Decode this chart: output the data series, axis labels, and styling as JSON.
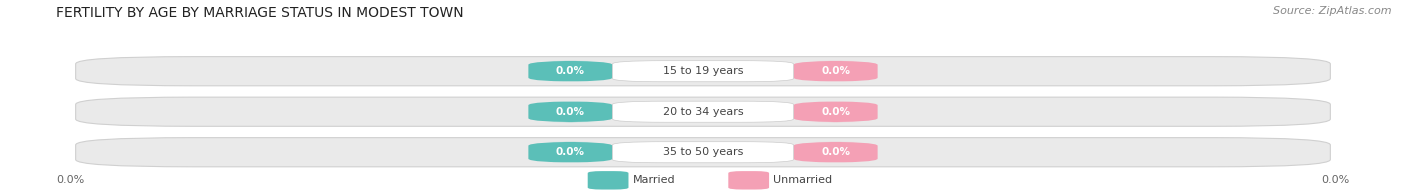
{
  "title": "FERTILITY BY AGE BY MARRIAGE STATUS IN MODEST TOWN",
  "source": "Source: ZipAtlas.com",
  "categories": [
    "15 to 19 years",
    "20 to 34 years",
    "35 to 50 years"
  ],
  "married_values": [
    0.0,
    0.0,
    0.0
  ],
  "unmarried_values": [
    0.0,
    0.0,
    0.0
  ],
  "married_color": "#5BBFB8",
  "unmarried_color": "#F4A0B5",
  "row_bg_color": "#EAEAEA",
  "fig_bg_color": "#FFFFFF",
  "axis_value_left": "0.0%",
  "axis_value_right": "0.0%",
  "title_fontsize": 10,
  "source_fontsize": 8,
  "label_fontsize": 8,
  "value_fontsize": 7.5,
  "figsize": [
    14.06,
    1.96
  ],
  "dpi": 100
}
